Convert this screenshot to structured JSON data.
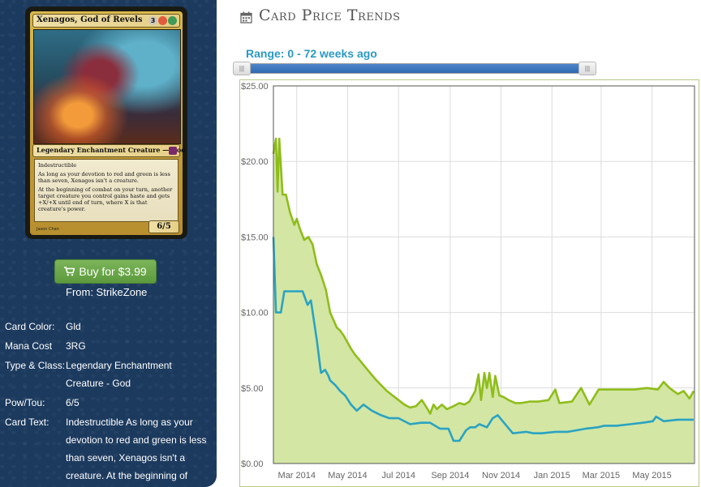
{
  "card": {
    "name": "Xenagos, God of Revels",
    "mana_symbols": [
      {
        "symbol": "3",
        "color": "#cfc8bf"
      },
      {
        "symbol": "",
        "color": "#e05c3c"
      },
      {
        "symbol": "",
        "color": "#3f9b56"
      }
    ],
    "type_line": "Legendary Enchantment Creature — God",
    "rules_text": [
      "Indestructible",
      "As long as your devotion to red and green is less than seven, Xenagos isn't a creature.",
      "At the beginning of combat on your turn, another target creature you control gains haste and gets +X/+X until end of turn, where X is that creature's power."
    ],
    "power_toughness": "6/5",
    "artist": "Jason Chan"
  },
  "purchase": {
    "button_label": "Buy for $3.99",
    "from_text": "From: StrikeZone"
  },
  "details": [
    {
      "label": "Card Color:",
      "value": "Gld"
    },
    {
      "label": "Mana Cost",
      "value": "3RG"
    },
    {
      "label": "Type & Class:",
      "value": "Legendary Enchantment Creature - God"
    },
    {
      "label": "Pow/Tou:",
      "value": "6/5"
    },
    {
      "label": "Card Text:",
      "value": "Indestructible As long as your devotion to red and green is less than seven, Xenagos isn't a creature. At the beginning of"
    }
  ],
  "chart": {
    "header_title": "Card Price Trends",
    "range_label": "Range: 0 - 72 weeks ago",
    "slider_handle_glyph": "|||"
  },
  "chart_data": {
    "type": "area",
    "title": "Card Price Trends",
    "ylim": [
      0,
      25
    ],
    "y_ticks": [
      "$0.00",
      "$5.00",
      "$10.00",
      "$15.00",
      "$20.00",
      "$25.00"
    ],
    "y_tick_values": [
      0,
      5,
      10,
      15,
      20,
      25
    ],
    "x_ticks": [
      "Mar 2014",
      "May 2014",
      "Jul 2014",
      "Sep 2014",
      "Nov 2014",
      "Jan 2015",
      "Mar 2015",
      "May 2015"
    ],
    "grid": true,
    "series": [
      {
        "color": "#8fbd1a",
        "fill": "#d3e6a4",
        "x": [
          "2014-02-01",
          "2014-02-04",
          "2014-02-06",
          "2014-02-08",
          "2014-02-12",
          "2014-02-16",
          "2014-02-21",
          "2014-02-26",
          "2014-03-01",
          "2014-03-05",
          "2014-03-10",
          "2014-03-15",
          "2014-03-20",
          "2014-03-25",
          "2014-03-30",
          "2014-04-05",
          "2014-04-10",
          "2014-04-14",
          "2014-04-18",
          "2014-04-22",
          "2014-04-26",
          "2014-05-01",
          "2014-05-05",
          "2014-05-10",
          "2014-05-16",
          "2014-05-22",
          "2014-05-28",
          "2014-06-03",
          "2014-06-10",
          "2014-06-17",
          "2014-06-24",
          "2014-07-01",
          "2014-07-08",
          "2014-07-15",
          "2014-07-22",
          "2014-07-29",
          "2014-08-05",
          "2014-08-08",
          "2014-08-12",
          "2014-08-16",
          "2014-08-22",
          "2014-08-28",
          "2014-09-05",
          "2014-09-12",
          "2014-09-18",
          "2014-09-24",
          "2014-10-01",
          "2014-10-05",
          "2014-10-08",
          "2014-10-12",
          "2014-10-15",
          "2014-10-18",
          "2014-10-22",
          "2014-10-25",
          "2014-10-30",
          "2014-11-04",
          "2014-11-10",
          "2014-11-18",
          "2014-11-25",
          "2014-12-05",
          "2014-12-15",
          "2014-12-28",
          "2015-01-05",
          "2015-01-10",
          "2015-01-25",
          "2015-02-05",
          "2015-02-15",
          "2015-02-26",
          "2015-03-10",
          "2015-03-25",
          "2015-04-10",
          "2015-04-25",
          "2015-05-08",
          "2015-05-15",
          "2015-05-22",
          "2015-06-01",
          "2015-06-08",
          "2015-06-15",
          "2015-06-20"
        ],
        "values": [
          20.5,
          21.5,
          18.0,
          21.5,
          17.8,
          17.8,
          16.6,
          15.8,
          16.2,
          15.5,
          14.8,
          15.0,
          14.5,
          13.2,
          12.5,
          11.5,
          10.0,
          9.5,
          9.0,
          8.8,
          8.5,
          8.0,
          7.6,
          7.2,
          6.8,
          6.4,
          6.0,
          5.6,
          5.2,
          4.8,
          4.5,
          4.2,
          3.9,
          3.7,
          3.8,
          4.2,
          3.6,
          3.3,
          3.9,
          3.6,
          3.9,
          3.6,
          3.8,
          4.0,
          3.9,
          4.1,
          4.8,
          5.9,
          4.2,
          6.0,
          5.0,
          6.0,
          4.4,
          5.8,
          4.5,
          4.4,
          4.2,
          4.0,
          4.0,
          4.1,
          4.1,
          4.2,
          4.9,
          4.0,
          4.1,
          5.0,
          3.9,
          4.9,
          4.9,
          4.9,
          4.9,
          5.0,
          4.9,
          5.4,
          5.0,
          4.6,
          4.8,
          4.3,
          4.8
        ]
      },
      {
        "color": "#2aa3c2",
        "x": [
          "2014-02-01",
          "2014-02-04",
          "2014-02-06",
          "2014-02-10",
          "2014-02-14",
          "2014-02-22",
          "2014-03-01",
          "2014-03-08",
          "2014-03-14",
          "2014-03-18",
          "2014-03-25",
          "2014-03-30",
          "2014-04-04",
          "2014-04-08",
          "2014-04-10",
          "2014-04-16",
          "2014-04-22",
          "2014-04-28",
          "2014-05-05",
          "2014-05-12",
          "2014-05-20",
          "2014-05-30",
          "2014-06-10",
          "2014-06-20",
          "2014-07-01",
          "2014-07-15",
          "2014-07-28",
          "2014-08-08",
          "2014-08-20",
          "2014-08-30",
          "2014-09-05",
          "2014-09-12",
          "2014-09-20",
          "2014-09-25",
          "2014-10-01",
          "2014-10-06",
          "2014-10-15",
          "2014-10-22",
          "2014-10-28",
          "2014-11-15",
          "2014-12-01",
          "2014-12-10",
          "2014-12-20",
          "2015-01-05",
          "2015-01-20",
          "2015-02-10",
          "2015-02-25",
          "2015-03-05",
          "2015-03-20",
          "2015-04-05",
          "2015-04-20",
          "2015-05-02",
          "2015-05-06",
          "2015-05-15",
          "2015-06-01",
          "2015-06-20"
        ],
        "values": [
          15.0,
          10.0,
          10.0,
          10.0,
          11.4,
          11.4,
          11.4,
          11.4,
          10.5,
          10.8,
          8.2,
          6.0,
          6.2,
          5.8,
          5.5,
          5.2,
          4.8,
          4.5,
          3.9,
          3.5,
          3.9,
          3.5,
          3.2,
          3.0,
          3.0,
          2.6,
          2.7,
          2.7,
          2.3,
          2.3,
          1.5,
          1.5,
          2.2,
          2.4,
          2.4,
          2.6,
          2.4,
          3.0,
          3.2,
          2.0,
          2.1,
          2.0,
          2.0,
          2.1,
          2.1,
          2.3,
          2.4,
          2.5,
          2.5,
          2.6,
          2.7,
          2.8,
          3.1,
          2.8,
          2.9,
          2.9
        ]
      }
    ]
  }
}
